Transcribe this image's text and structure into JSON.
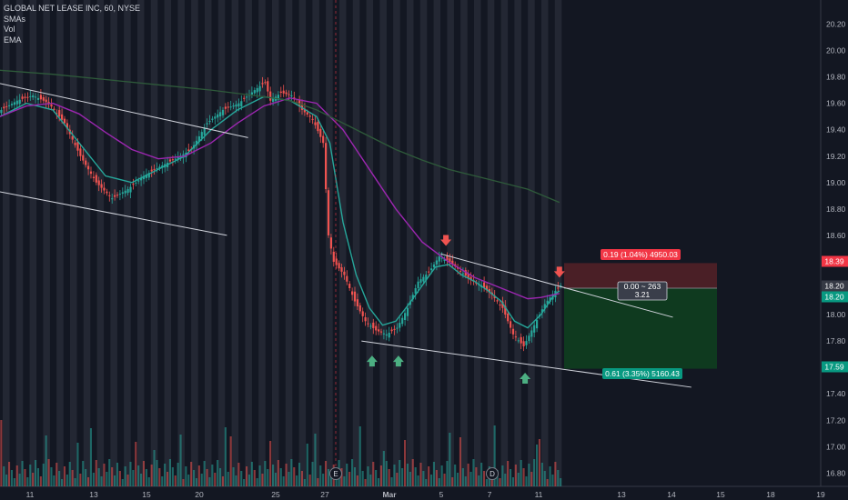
{
  "legend": {
    "symbol_line": "GLOBAL NET LEASE INC, 60, NYSE",
    "indicators": [
      "SMAs",
      "Vol",
      "EMA"
    ]
  },
  "colors": {
    "background": "#131722",
    "session_band": "#2a2e39",
    "up": "#26a69a",
    "down": "#ef5350",
    "ema_fast": "#26a69a",
    "sma_mid": "#9c27b0",
    "sma_slow": "#2e5a3a",
    "trendline": "#d1d4dc",
    "stop_zone": "#4a1f26",
    "target_zone": "#0f3a1f",
    "stop_label": "#f23645",
    "target_label": "#089981",
    "axis_text": "#b2b5be"
  },
  "chart_data": {
    "type": "candlestick",
    "title": "GLOBAL NET LEASE INC, 60, NYSE",
    "price_axis": {
      "ticks": [
        20.2,
        20.0,
        19.8,
        19.6,
        19.4,
        19.2,
        19.0,
        18.8,
        18.6,
        18.4,
        18.2,
        18.0,
        17.8,
        17.6,
        17.4,
        17.2,
        17.0,
        16.8
      ],
      "ylim": [
        16.74,
        20.3
      ]
    },
    "time_axis": {
      "ticks": [
        "11",
        "13",
        "15",
        "20",
        "25",
        "27",
        "Mar",
        "5",
        "7",
        "11",
        "13",
        "14",
        "15",
        "18",
        "19"
      ]
    },
    "price_markers": [
      {
        "value": "18.39",
        "kind": "stop"
      },
      {
        "value": "18.20",
        "kind": "current-1"
      },
      {
        "value": "18.20",
        "kind": "current-2"
      },
      {
        "value": "17.59",
        "kind": "target"
      }
    ],
    "price_path": [
      [
        0,
        19.55
      ],
      [
        6,
        19.62
      ],
      [
        12,
        19.66
      ],
      [
        18,
        19.6
      ],
      [
        24,
        19.45
      ],
      [
        30,
        19.2
      ],
      [
        36,
        19.0
      ],
      [
        42,
        18.88
      ],
      [
        48,
        18.95
      ],
      [
        54,
        19.05
      ],
      [
        60,
        19.12
      ],
      [
        66,
        19.18
      ],
      [
        72,
        19.25
      ],
      [
        78,
        19.45
      ],
      [
        84,
        19.55
      ],
      [
        90,
        19.6
      ],
      [
        96,
        19.7
      ],
      [
        100,
        19.76
      ],
      [
        102,
        19.62
      ],
      [
        106,
        19.68
      ],
      [
        110,
        19.66
      ],
      [
        114,
        19.55
      ],
      [
        118,
        19.48
      ],
      [
        122,
        19.3
      ],
      [
        124,
        18.6
      ],
      [
        126,
        18.4
      ],
      [
        130,
        18.3
      ],
      [
        134,
        18.1
      ],
      [
        138,
        17.95
      ],
      [
        142,
        17.88
      ],
      [
        146,
        17.85
      ],
      [
        150,
        17.9
      ],
      [
        154,
        18.05
      ],
      [
        158,
        18.25
      ],
      [
        162,
        18.32
      ],
      [
        166,
        18.44
      ],
      [
        170,
        18.4
      ],
      [
        174,
        18.33
      ],
      [
        178,
        18.26
      ],
      [
        182,
        18.22
      ],
      [
        186,
        18.15
      ],
      [
        190,
        18.05
      ],
      [
        194,
        17.85
      ],
      [
        198,
        17.76
      ],
      [
        202,
        17.92
      ],
      [
        206,
        18.08
      ],
      [
        210,
        18.18
      ],
      [
        212,
        18.22
      ]
    ],
    "series": [
      {
        "name": "EMA",
        "values": [
          [
            0,
            19.5
          ],
          [
            10,
            19.6
          ],
          [
            20,
            19.55
          ],
          [
            30,
            19.3
          ],
          [
            40,
            19.05
          ],
          [
            50,
            19.0
          ],
          [
            60,
            19.1
          ],
          [
            70,
            19.2
          ],
          [
            80,
            19.4
          ],
          [
            90,
            19.55
          ],
          [
            100,
            19.65
          ],
          [
            110,
            19.62
          ],
          [
            120,
            19.5
          ],
          [
            125,
            19.3
          ],
          [
            130,
            18.7
          ],
          [
            135,
            18.3
          ],
          [
            140,
            18.05
          ],
          [
            145,
            17.92
          ],
          [
            150,
            17.95
          ],
          [
            155,
            18.08
          ],
          [
            160,
            18.22
          ],
          [
            165,
            18.36
          ],
          [
            170,
            18.38
          ],
          [
            175,
            18.3
          ],
          [
            180,
            18.25
          ],
          [
            185,
            18.18
          ],
          [
            190,
            18.1
          ],
          [
            195,
            17.95
          ],
          [
            200,
            17.9
          ],
          [
            205,
            18.0
          ],
          [
            210,
            18.15
          ],
          [
            212,
            18.18
          ]
        ]
      },
      {
        "name": "SMAs",
        "values": [
          [
            0,
            19.5
          ],
          [
            10,
            19.58
          ],
          [
            20,
            19.6
          ],
          [
            30,
            19.52
          ],
          [
            40,
            19.38
          ],
          [
            50,
            19.25
          ],
          [
            60,
            19.18
          ],
          [
            70,
            19.2
          ],
          [
            80,
            19.3
          ],
          [
            90,
            19.45
          ],
          [
            100,
            19.58
          ],
          [
            110,
            19.64
          ],
          [
            120,
            19.6
          ],
          [
            130,
            19.4
          ],
          [
            140,
            19.1
          ],
          [
            150,
            18.8
          ],
          [
            160,
            18.55
          ],
          [
            170,
            18.4
          ],
          [
            180,
            18.28
          ],
          [
            190,
            18.2
          ],
          [
            200,
            18.12
          ],
          [
            205,
            18.13
          ],
          [
            212,
            18.16
          ]
        ]
      },
      {
        "name": "SMAs",
        "values": [
          [
            0,
            19.85
          ],
          [
            20,
            19.82
          ],
          [
            40,
            19.78
          ],
          [
            60,
            19.74
          ],
          [
            80,
            19.7
          ],
          [
            100,
            19.65
          ],
          [
            110,
            19.62
          ],
          [
            120,
            19.55
          ],
          [
            130,
            19.45
          ],
          [
            140,
            19.35
          ],
          [
            150,
            19.25
          ],
          [
            160,
            19.17
          ],
          [
            170,
            19.1
          ],
          [
            180,
            19.05
          ],
          [
            190,
            19.0
          ],
          [
            200,
            18.95
          ],
          [
            212,
            18.85
          ]
        ]
      }
    ],
    "trendlines": [
      {
        "from": [
          0,
          19.75
        ],
        "to": [
          94,
          19.34
        ]
      },
      {
        "from": [
          0,
          18.93
        ],
        "to": [
          86,
          18.6
        ]
      },
      {
        "from": [
          167,
          18.46
        ],
        "to": [
          255,
          17.98
        ]
      },
      {
        "from": [
          137,
          17.8
        ],
        "to": [
          262,
          17.45
        ]
      }
    ],
    "signals": [
      {
        "type": "down-arrow",
        "x": 169,
        "price": 18.52
      },
      {
        "type": "down-arrow",
        "x": 212,
        "price": 18.28
      },
      {
        "type": "up-arrow",
        "x": 141,
        "price": 17.69
      },
      {
        "type": "up-arrow",
        "x": 151,
        "price": 17.69
      },
      {
        "type": "up-arrow",
        "x": 199,
        "price": 17.56
      }
    ],
    "event_badges": [
      "E",
      "D"
    ],
    "position_tool": {
      "entry": 18.2,
      "stop": 18.39,
      "target": 17.59,
      "stop_label": "0.19 (1.04%) 4950.03",
      "target_label": "0.61 (3.35%) 5160.43",
      "center_line1": "0.00 ~ 263",
      "center_line2": "3.21"
    }
  }
}
